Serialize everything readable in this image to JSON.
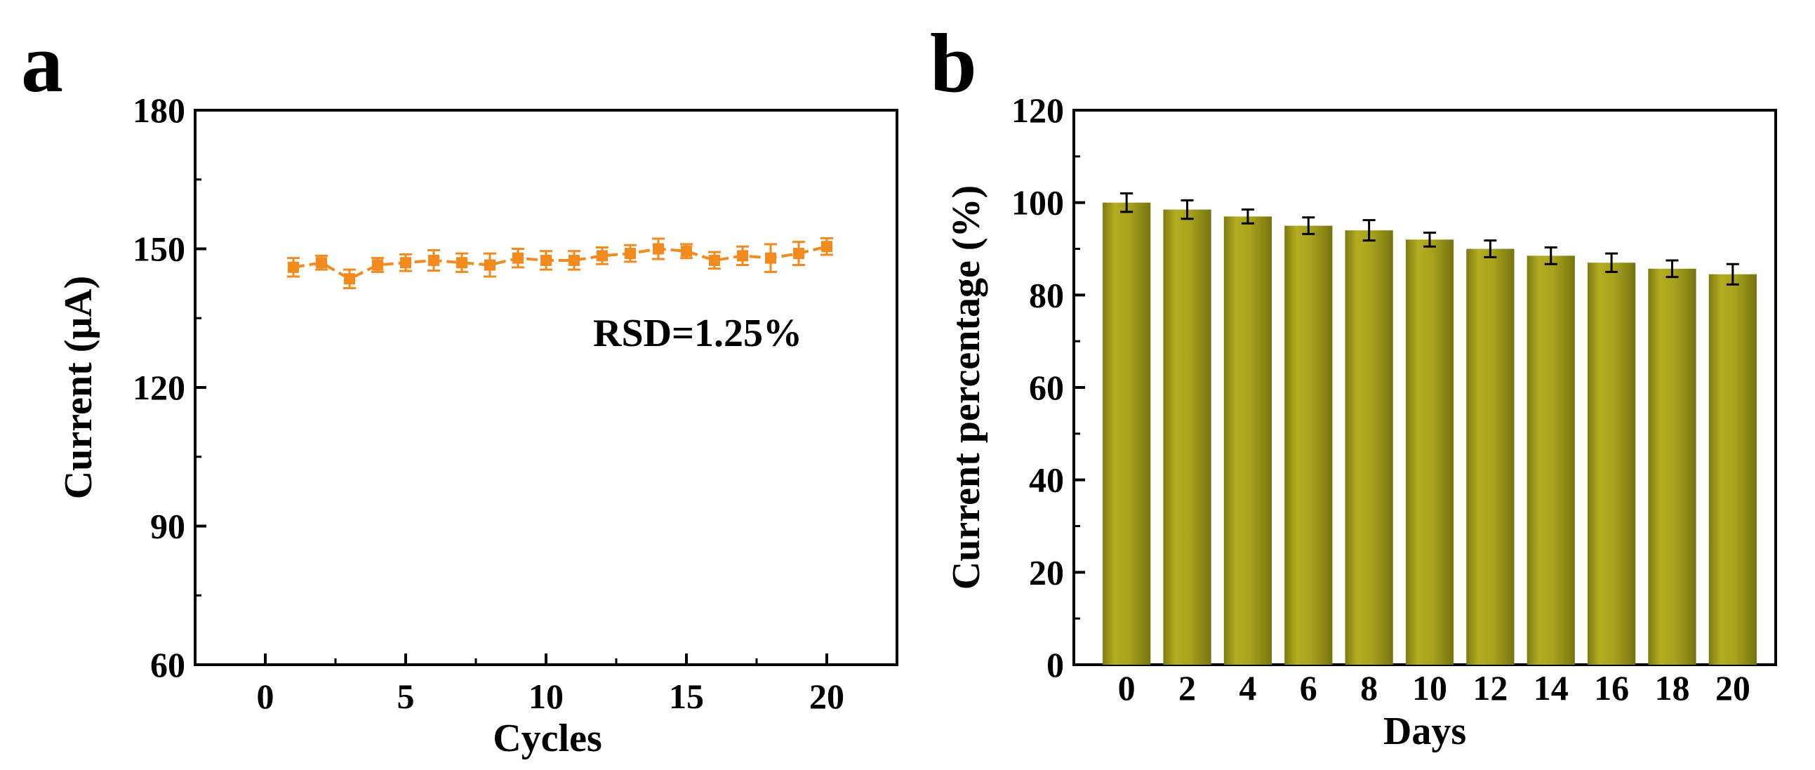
{
  "chart_data": [
    {
      "panel_label": "a",
      "type": "line",
      "xlabel": "Cycles",
      "ylabel": "Current (μA)",
      "xlim": [
        -2.5,
        22.5
      ],
      "ylim": [
        60,
        180
      ],
      "xticks": [
        0,
        5,
        10,
        15,
        20
      ],
      "yticks": [
        60,
        90,
        120,
        150,
        180
      ],
      "annotation": "RSD=1.25%",
      "series": [
        {
          "name": "Current",
          "color": "#F28A1E",
          "x": [
            1,
            2,
            3,
            4,
            5,
            6,
            7,
            8,
            9,
            10,
            11,
            12,
            13,
            14,
            15,
            16,
            17,
            18,
            19,
            20
          ],
          "values": [
            146.0,
            147.0,
            143.5,
            146.5,
            147.0,
            147.5,
            147.0,
            146.5,
            148.0,
            147.5,
            147.5,
            148.5,
            149.0,
            150.0,
            149.5,
            147.5,
            148.5,
            148.0,
            149.0,
            150.5
          ],
          "errors": [
            2.0,
            1.5,
            2.0,
            1.5,
            1.8,
            2.2,
            2.0,
            2.5,
            2.0,
            2.0,
            2.0,
            1.8,
            1.8,
            2.2,
            1.5,
            1.8,
            2.0,
            3.0,
            2.5,
            1.8
          ]
        }
      ]
    },
    {
      "panel_label": "b",
      "type": "bar",
      "xlabel": "Days",
      "ylabel": "Current percentage (%)",
      "ylim": [
        0,
        120
      ],
      "yticks": [
        0,
        20,
        40,
        60,
        80,
        100,
        120
      ],
      "categories": [
        "0",
        "2",
        "4",
        "6",
        "8",
        "10",
        "12",
        "14",
        "16",
        "18",
        "20"
      ],
      "series": [
        {
          "name": "Current percentage",
          "color": "#A6A01C",
          "values": [
            100.0,
            98.5,
            97.0,
            95.0,
            94.0,
            92.0,
            90.0,
            88.5,
            87.0,
            85.7,
            84.5
          ],
          "errors": [
            2.0,
            2.0,
            1.5,
            1.8,
            2.2,
            1.5,
            1.8,
            1.8,
            2.0,
            1.8,
            2.2
          ]
        }
      ]
    }
  ]
}
